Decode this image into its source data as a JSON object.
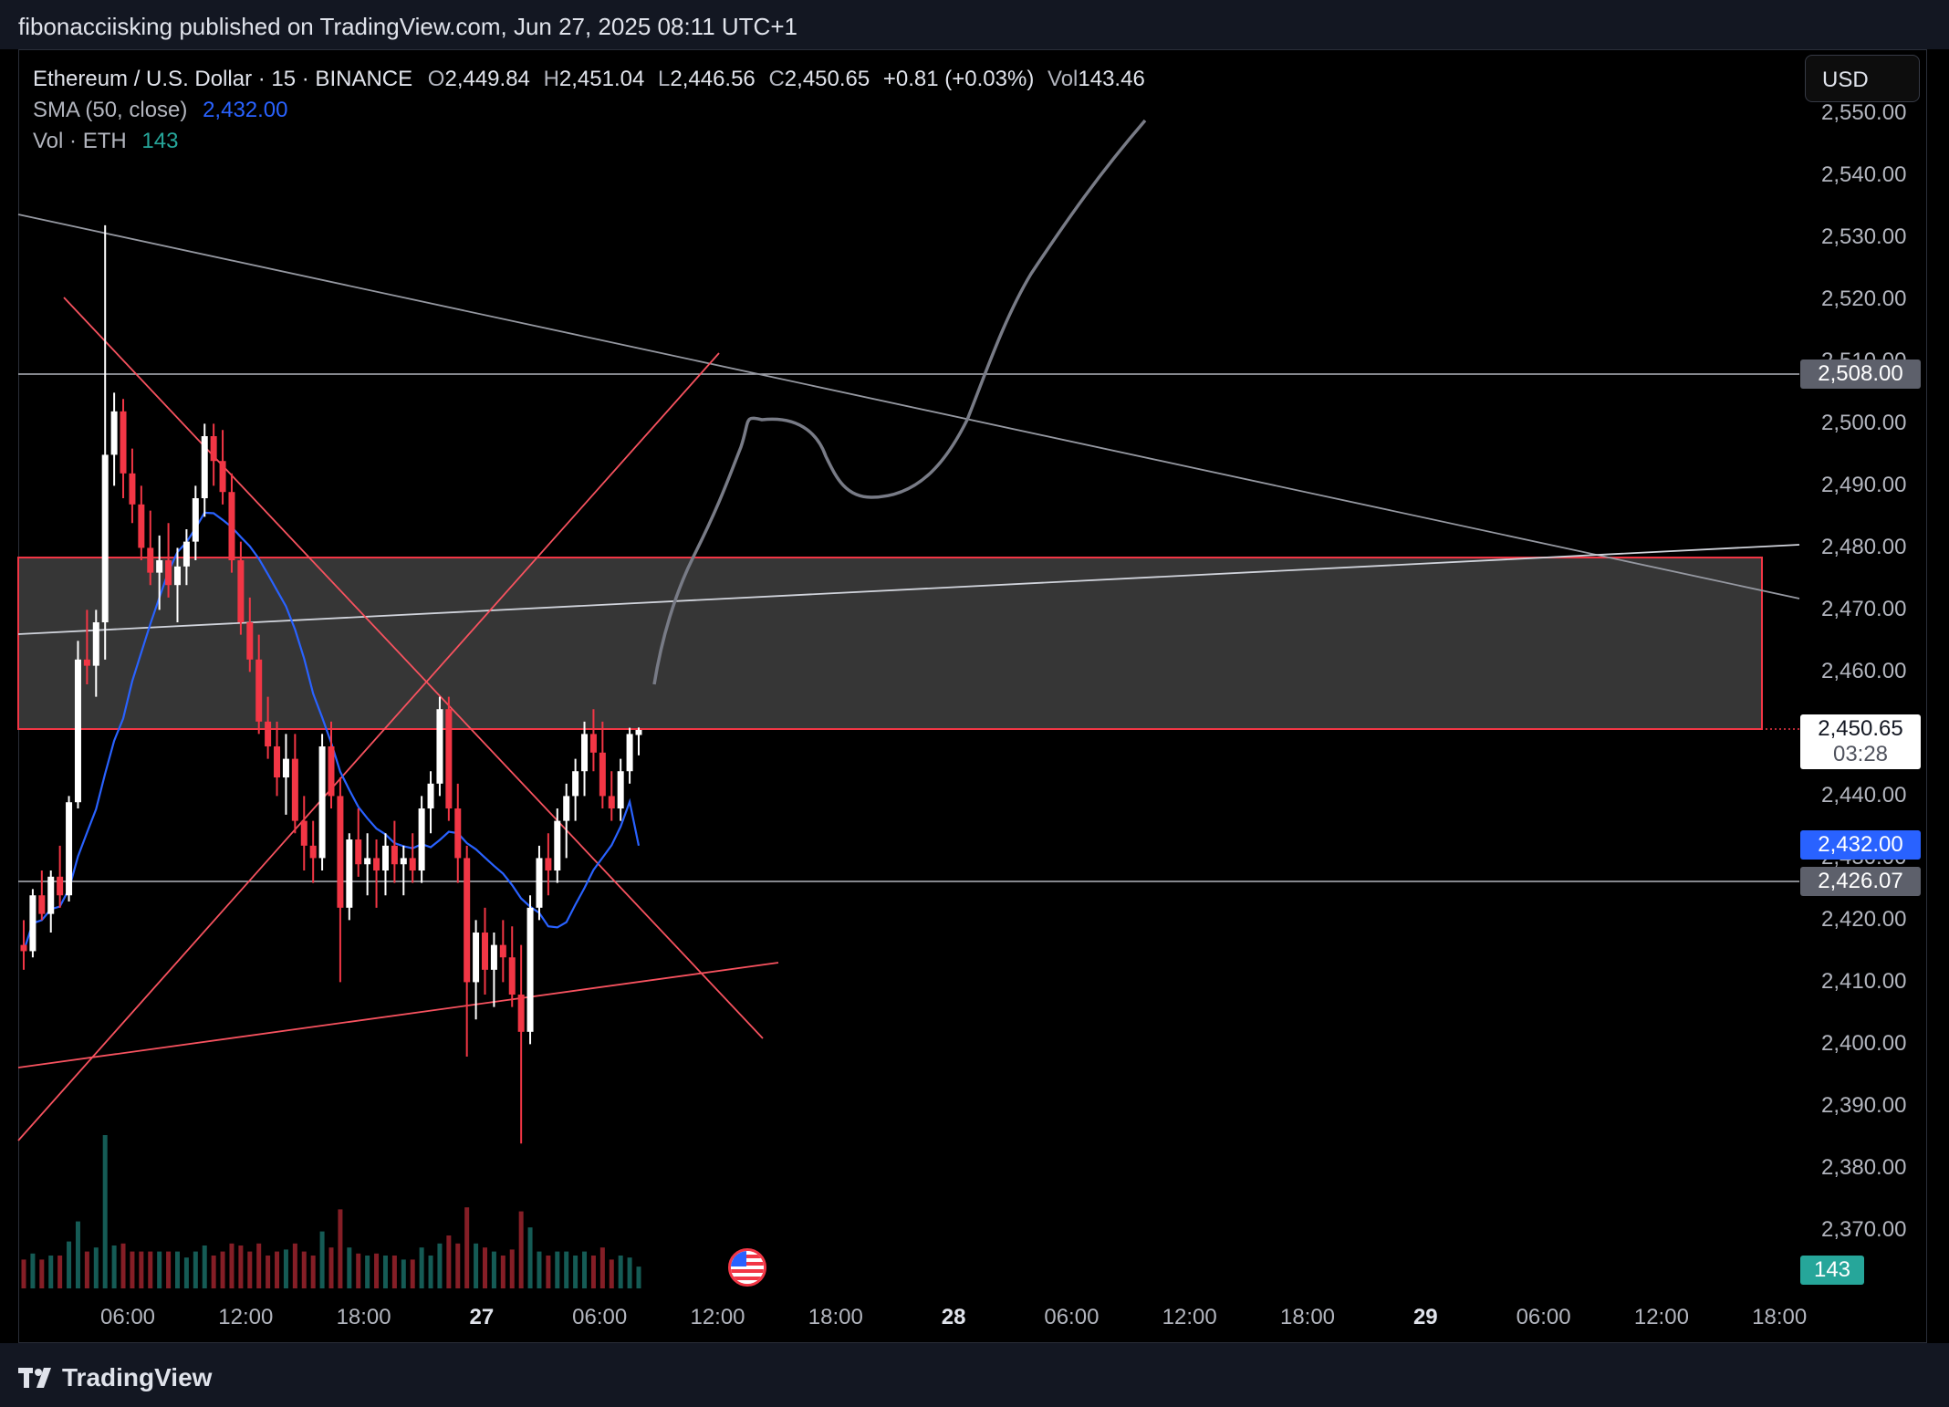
{
  "header": {
    "text": "fibonacciisking published on TradingView.com, Jun 27, 2025 08:11 UTC+1"
  },
  "legend": {
    "symbol": "Ethereum / U.S. Dollar · 15 · BINANCE",
    "o_label": "O",
    "o_value": "2,449.84",
    "h_label": "H",
    "h_value": "2,451.04",
    "l_label": "L",
    "l_value": "2,446.56",
    "c_label": "C",
    "c_value": "2,450.65",
    "change": "+0.81 (+0.03%)",
    "vol_label": "Vol",
    "vol_value": "143.46",
    "sma_label": "SMA (50, close)",
    "sma_value": "2,432.00",
    "volume_label": "Vol · ETH",
    "volume_value": "143"
  },
  "currency_button": "USD",
  "price_axis": {
    "labels": [
      "2,550.00",
      "2,540.00",
      "2,530.00",
      "2,520.00",
      "2,510.00",
      "2,500.00",
      "2,490.00",
      "2,480.00",
      "2,470.00",
      "2,460.00",
      "2,440.00",
      "2,430.00",
      "2,420.00",
      "2,410.00",
      "2,400.00",
      "2,390.00",
      "2,380.00",
      "2,370.00"
    ],
    "values": [
      2550,
      2540,
      2530,
      2520,
      2510,
      2500,
      2490,
      2480,
      2470,
      2460,
      2440,
      2430,
      2420,
      2410,
      2400,
      2390,
      2380,
      2370
    ]
  },
  "price_tags": {
    "level_high": "2,508.00",
    "last_price": "2,450.65",
    "countdown": "03:28",
    "sma": "2,432.00",
    "level_low": "2,426.07",
    "volume": "143"
  },
  "time_axis": {
    "labels": [
      "06:00",
      "12:00",
      "18:00",
      "27",
      "06:00",
      "12:00",
      "18:00",
      "28",
      "06:00",
      "12:00",
      "18:00",
      "29",
      "06:00",
      "12:00",
      "18:00"
    ],
    "bold": [
      false,
      false,
      false,
      true,
      false,
      false,
      false,
      true,
      false,
      false,
      false,
      true,
      false,
      false,
      false
    ]
  },
  "footer": {
    "brand": "TradingView"
  },
  "colors": {
    "background": "#000000",
    "up": "#ffffff",
    "down": "#f23645",
    "volume_up": "#26a69a",
    "volume_down": "#f23645",
    "sma": "#2962ff",
    "zone_border": "#f23645",
    "zone_fill": "#363636",
    "trendline": "#f7525f",
    "level_line": "#787b86"
  },
  "chart_data": {
    "type": "candlestick",
    "symbol": "Ethereum / U.S. Dollar",
    "interval": "15",
    "exchange": "BINANCE",
    "last": 2450.65,
    "sma_last": 2432.0,
    "levels": [
      2508.0,
      2426.07
    ],
    "zone": {
      "top": 2478,
      "bottom": 2450.65
    },
    "ohlc_approx": [
      [
        2416,
        2420,
        2412,
        2415
      ],
      [
        2415,
        2425,
        2414,
        2424
      ],
      [
        2424,
        2428,
        2420,
        2421
      ],
      [
        2421,
        2428,
        2418,
        2427
      ],
      [
        2427,
        2432,
        2422,
        2424
      ],
      [
        2424,
        2440,
        2423,
        2439
      ],
      [
        2439,
        2465,
        2438,
        2462
      ],
      [
        2462,
        2470,
        2458,
        2461
      ],
      [
        2461,
        2470,
        2456,
        2468
      ],
      [
        2468,
        2532,
        2462,
        2495
      ],
      [
        2495,
        2505,
        2490,
        2502
      ],
      [
        2502,
        2504,
        2488,
        2492
      ],
      [
        2492,
        2496,
        2484,
        2487
      ],
      [
        2487,
        2490,
        2478,
        2480
      ],
      [
        2480,
        2486,
        2474,
        2476
      ],
      [
        2476,
        2482,
        2470,
        2478
      ],
      [
        2478,
        2484,
        2472,
        2474
      ],
      [
        2474,
        2480,
        2468,
        2477
      ],
      [
        2477,
        2483,
        2474,
        2481
      ],
      [
        2481,
        2490,
        2478,
        2488
      ],
      [
        2488,
        2500,
        2485,
        2498
      ],
      [
        2498,
        2500,
        2490,
        2494
      ],
      [
        2494,
        2499,
        2487,
        2489
      ],
      [
        2489,
        2492,
        2476,
        2478
      ],
      [
        2478,
        2481,
        2466,
        2468
      ],
      [
        2468,
        2472,
        2460,
        2462
      ],
      [
        2462,
        2466,
        2450,
        2452
      ],
      [
        2452,
        2456,
        2446,
        2448
      ],
      [
        2448,
        2452,
        2440,
        2443
      ],
      [
        2443,
        2450,
        2437,
        2446
      ],
      [
        2446,
        2450,
        2434,
        2436
      ],
      [
        2436,
        2440,
        2428,
        2432
      ],
      [
        2432,
        2436,
        2426,
        2430
      ],
      [
        2430,
        2450,
        2428,
        2448
      ],
      [
        2448,
        2452,
        2438,
        2440
      ],
      [
        2440,
        2443,
        2410,
        2422
      ],
      [
        2422,
        2434,
        2420,
        2433
      ],
      [
        2433,
        2438,
        2427,
        2429
      ],
      [
        2429,
        2434,
        2424,
        2430
      ],
      [
        2430,
        2433,
        2422,
        2428
      ],
      [
        2428,
        2434,
        2424,
        2432
      ],
      [
        2432,
        2436,
        2426,
        2429
      ],
      [
        2429,
        2432,
        2424,
        2430
      ],
      [
        2430,
        2434,
        2426,
        2428
      ],
      [
        2428,
        2440,
        2426,
        2438
      ],
      [
        2438,
        2444,
        2434,
        2442
      ],
      [
        2442,
        2456,
        2440,
        2454
      ],
      [
        2454,
        2456,
        2436,
        2438
      ],
      [
        2438,
        2442,
        2426,
        2430
      ],
      [
        2430,
        2432,
        2398,
        2410
      ],
      [
        2410,
        2420,
        2404,
        2418
      ],
      [
        2418,
        2422,
        2408,
        2412
      ],
      [
        2412,
        2418,
        2406,
        2416
      ],
      [
        2416,
        2420,
        2410,
        2414
      ],
      [
        2414,
        2419,
        2406,
        2408
      ],
      [
        2408,
        2416,
        2384,
        2402
      ],
      [
        2402,
        2424,
        2400,
        2422
      ],
      [
        2422,
        2432,
        2420,
        2430
      ],
      [
        2430,
        2434,
        2424,
        2428
      ],
      [
        2428,
        2438,
        2426,
        2436
      ],
      [
        2436,
        2442,
        2430,
        2440
      ],
      [
        2440,
        2446,
        2436,
        2444
      ],
      [
        2444,
        2452,
        2440,
        2450
      ],
      [
        2450,
        2454,
        2444,
        2447
      ],
      [
        2447,
        2452,
        2438,
        2440
      ],
      [
        2440,
        2444,
        2436,
        2438
      ],
      [
        2438,
        2446,
        2436,
        2444
      ],
      [
        2444,
        2451,
        2442,
        2450
      ],
      [
        2449.84,
        2451.04,
        2446.56,
        2450.65
      ]
    ]
  }
}
